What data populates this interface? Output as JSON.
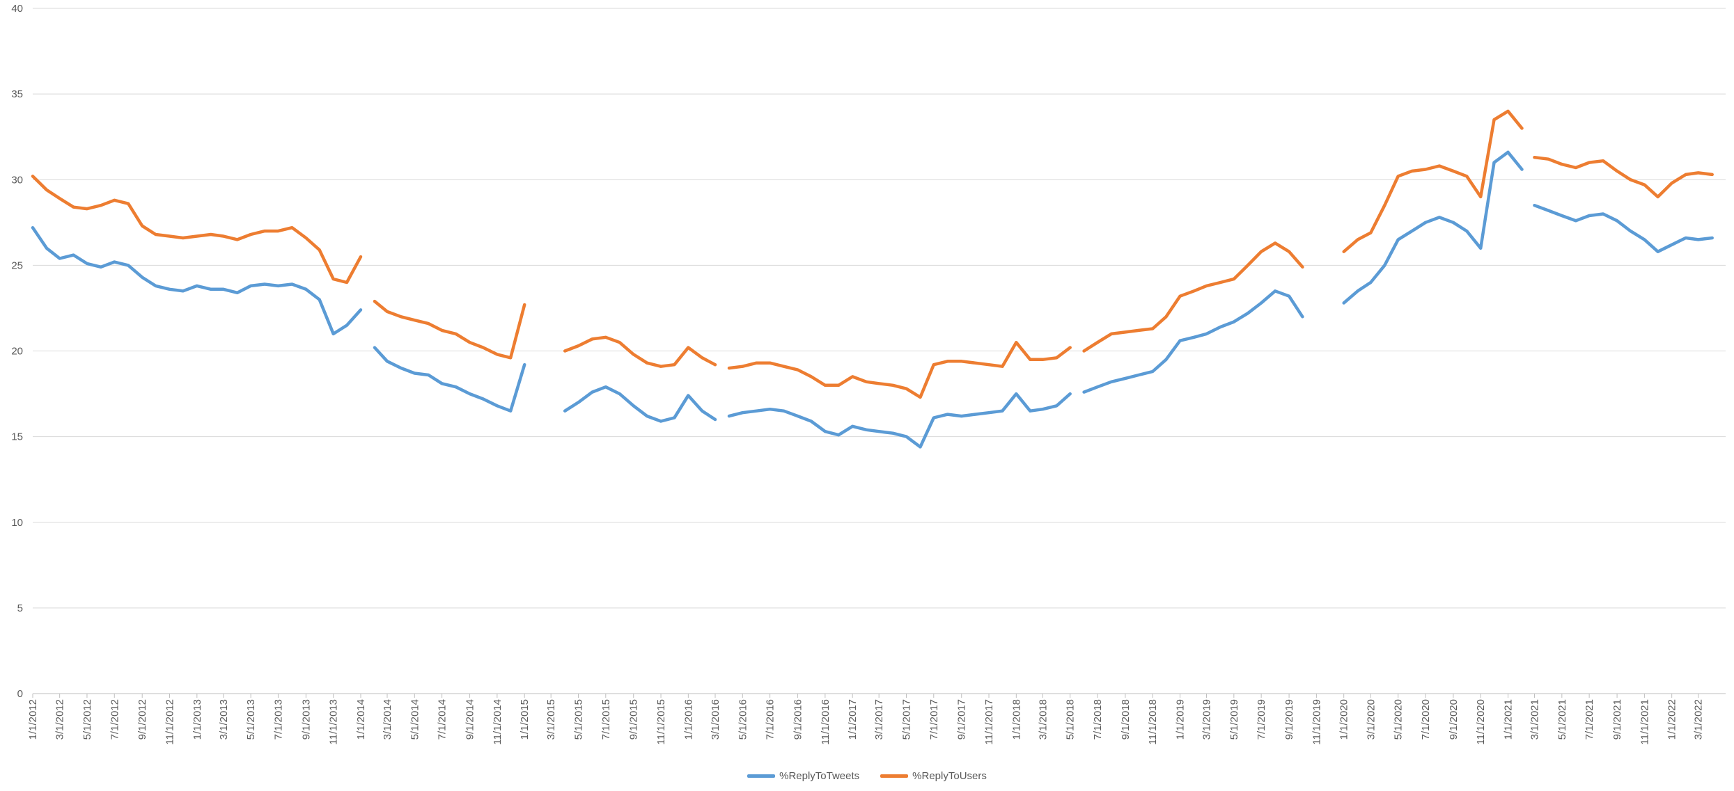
{
  "chart_data": {
    "type": "line",
    "title": "",
    "xlabel": "",
    "ylabel": "",
    "ylim": [
      0,
      40
    ],
    "yticks": [
      0,
      5,
      10,
      15,
      20,
      25,
      30,
      35,
      40
    ],
    "xlim": [
      "1/1/2012",
      "5/1/2022"
    ],
    "x_tick_labels": [
      "1/1/2012",
      "3/1/2012",
      "5/1/2012",
      "7/1/2012",
      "9/1/2012",
      "11/1/2012",
      "1/1/2013",
      "3/1/2013",
      "5/1/2013",
      "7/1/2013",
      "9/1/2013",
      "11/1/2013",
      "1/1/2014",
      "3/1/2014",
      "5/1/2014",
      "7/1/2014",
      "9/1/2014",
      "11/1/2014",
      "1/1/2015",
      "3/1/2015",
      "5/1/2015",
      "7/1/2015",
      "9/1/2015",
      "11/1/2015",
      "1/1/2016",
      "3/1/2016",
      "5/1/2016",
      "7/1/2016",
      "9/1/2016",
      "11/1/2016",
      "1/1/2017",
      "3/1/2017",
      "5/1/2017",
      "7/1/2017",
      "9/1/2017",
      "11/1/2017",
      "1/1/2018",
      "3/1/2018",
      "5/1/2018",
      "7/1/2018",
      "9/1/2018",
      "11/1/2018",
      "1/1/2019",
      "3/1/2019",
      "5/1/2019",
      "7/1/2019",
      "9/1/2019",
      "11/1/2019",
      "1/1/2020",
      "3/1/2020",
      "5/1/2020",
      "7/1/2020",
      "9/1/2020",
      "11/1/2020",
      "1/1/2021",
      "3/1/2021",
      "5/1/2021",
      "7/1/2021",
      "9/1/2021",
      "11/1/2021",
      "1/1/2022",
      "3/1/2022"
    ],
    "grid": true,
    "legend_position": "bottom",
    "series": [
      {
        "name": "%ReplyToTweets",
        "color": "#5B9BD5",
        "segments": [
          [
            [
              "1/1/2012",
              27.2
            ],
            [
              "2/1/2012",
              26.0
            ],
            [
              "3/1/2012",
              25.4
            ],
            [
              "4/1/2012",
              25.6
            ],
            [
              "5/1/2012",
              25.1
            ],
            [
              "6/1/2012",
              24.9
            ],
            [
              "7/1/2012",
              25.2
            ],
            [
              "8/1/2012",
              25.0
            ],
            [
              "9/1/2012",
              24.3
            ],
            [
              "10/1/2012",
              23.8
            ],
            [
              "11/1/2012",
              23.6
            ],
            [
              "12/1/2012",
              23.5
            ],
            [
              "1/1/2013",
              23.8
            ],
            [
              "2/1/2013",
              23.6
            ],
            [
              "3/1/2013",
              23.6
            ],
            [
              "4/1/2013",
              23.4
            ],
            [
              "5/1/2013",
              23.8
            ],
            [
              "6/1/2013",
              23.9
            ],
            [
              "7/1/2013",
              23.8
            ],
            [
              "8/1/2013",
              23.9
            ],
            [
              "9/1/2013",
              23.6
            ],
            [
              "10/1/2013",
              23.0
            ],
            [
              "11/1/2013",
              21.0
            ],
            [
              "12/1/2013",
              21.5
            ],
            [
              "1/1/2014",
              22.4
            ]
          ],
          [
            [
              "2/1/2014",
              20.2
            ],
            [
              "3/1/2014",
              19.4
            ],
            [
              "4/1/2014",
              19.0
            ],
            [
              "5/1/2014",
              18.7
            ],
            [
              "6/1/2014",
              18.6
            ],
            [
              "7/1/2014",
              18.1
            ],
            [
              "8/1/2014",
              17.9
            ],
            [
              "9/1/2014",
              17.5
            ],
            [
              "10/1/2014",
              17.2
            ],
            [
              "11/1/2014",
              16.8
            ],
            [
              "12/1/2014",
              16.5
            ],
            [
              "1/1/2015",
              19.2
            ]
          ],
          [
            [
              "4/1/2015",
              16.5
            ],
            [
              "5/1/2015",
              17.0
            ],
            [
              "6/1/2015",
              17.6
            ],
            [
              "7/1/2015",
              17.9
            ],
            [
              "8/1/2015",
              17.5
            ],
            [
              "9/1/2015",
              16.8
            ],
            [
              "10/1/2015",
              16.2
            ],
            [
              "11/1/2015",
              15.9
            ],
            [
              "12/1/2015",
              16.1
            ],
            [
              "1/1/2016",
              17.4
            ],
            [
              "2/1/2016",
              16.5
            ],
            [
              "3/1/2016",
              16.0
            ]
          ],
          [
            [
              "4/1/2016",
              16.2
            ],
            [
              "5/1/2016",
              16.4
            ],
            [
              "6/1/2016",
              16.5
            ],
            [
              "7/1/2016",
              16.6
            ],
            [
              "8/1/2016",
              16.5
            ],
            [
              "9/1/2016",
              16.2
            ],
            [
              "10/1/2016",
              15.9
            ],
            [
              "11/1/2016",
              15.3
            ],
            [
              "12/1/2016",
              15.1
            ],
            [
              "1/1/2017",
              15.6
            ],
            [
              "2/1/2017",
              15.4
            ],
            [
              "3/1/2017",
              15.3
            ],
            [
              "4/1/2017",
              15.2
            ],
            [
              "5/1/2017",
              15.0
            ],
            [
              "6/1/2017",
              14.4
            ],
            [
              "7/1/2017",
              16.1
            ],
            [
              "8/1/2017",
              16.3
            ],
            [
              "9/1/2017",
              16.2
            ],
            [
              "10/1/2017",
              16.3
            ],
            [
              "11/1/2017",
              16.4
            ],
            [
              "12/1/2017",
              16.5
            ],
            [
              "1/1/2018",
              17.5
            ],
            [
              "2/1/2018",
              16.5
            ],
            [
              "3/1/2018",
              16.6
            ],
            [
              "4/1/2018",
              16.8
            ],
            [
              "5/1/2018",
              17.5
            ]
          ],
          [
            [
              "6/1/2018",
              17.6
            ],
            [
              "7/1/2018",
              17.9
            ],
            [
              "8/1/2018",
              18.2
            ],
            [
              "9/1/2018",
              18.4
            ],
            [
              "10/1/2018",
              18.6
            ],
            [
              "11/1/2018",
              18.8
            ],
            [
              "12/1/2018",
              19.5
            ],
            [
              "1/1/2019",
              20.6
            ],
            [
              "2/1/2019",
              20.8
            ],
            [
              "3/1/2019",
              21.0
            ],
            [
              "4/1/2019",
              21.4
            ],
            [
              "5/1/2019",
              21.7
            ],
            [
              "6/1/2019",
              22.2
            ],
            [
              "7/1/2019",
              22.8
            ],
            [
              "8/1/2019",
              23.5
            ],
            [
              "9/1/2019",
              23.2
            ],
            [
              "10/1/2019",
              22.0
            ]
          ],
          [
            [
              "1/1/2020",
              22.8
            ],
            [
              "2/1/2020",
              23.5
            ],
            [
              "3/1/2020",
              24.0
            ],
            [
              "4/1/2020",
              25.0
            ],
            [
              "5/1/2020",
              26.5
            ],
            [
              "6/1/2020",
              27.0
            ],
            [
              "7/1/2020",
              27.5
            ],
            [
              "8/1/2020",
              27.8
            ],
            [
              "9/1/2020",
              27.5
            ],
            [
              "10/1/2020",
              27.0
            ],
            [
              "11/1/2020",
              26.0
            ],
            [
              "12/1/2020",
              31.0
            ],
            [
              "1/1/2021",
              31.6
            ],
            [
              "2/1/2021",
              30.6
            ]
          ],
          [
            [
              "3/1/2021",
              28.5
            ],
            [
              "4/1/2021",
              28.2
            ],
            [
              "5/1/2021",
              27.9
            ],
            [
              "6/1/2021",
              27.6
            ],
            [
              "7/1/2021",
              27.9
            ],
            [
              "8/1/2021",
              28.0
            ],
            [
              "9/1/2021",
              27.6
            ],
            [
              "10/1/2021",
              27.0
            ],
            [
              "11/1/2021",
              26.5
            ],
            [
              "12/1/2021",
              25.8
            ],
            [
              "1/1/2022",
              26.2
            ],
            [
              "2/1/2022",
              26.6
            ],
            [
              "3/1/2022",
              26.5
            ],
            [
              "4/1/2022",
              26.6
            ]
          ]
        ]
      },
      {
        "name": "%ReplyToUsers",
        "color": "#ED7D31",
        "segments": [
          [
            [
              "1/1/2012",
              30.2
            ],
            [
              "2/1/2012",
              29.4
            ],
            [
              "3/1/2012",
              28.9
            ],
            [
              "4/1/2012",
              28.4
            ],
            [
              "5/1/2012",
              28.3
            ],
            [
              "6/1/2012",
              28.5
            ],
            [
              "7/1/2012",
              28.8
            ],
            [
              "8/1/2012",
              28.6
            ],
            [
              "9/1/2012",
              27.3
            ],
            [
              "10/1/2012",
              26.8
            ],
            [
              "11/1/2012",
              26.7
            ],
            [
              "12/1/2012",
              26.6
            ],
            [
              "1/1/2013",
              26.7
            ],
            [
              "2/1/2013",
              26.8
            ],
            [
              "3/1/2013",
              26.7
            ],
            [
              "4/1/2013",
              26.5
            ],
            [
              "5/1/2013",
              26.8
            ],
            [
              "6/1/2013",
              27.0
            ],
            [
              "7/1/2013",
              27.0
            ],
            [
              "8/1/2013",
              27.2
            ],
            [
              "9/1/2013",
              26.6
            ],
            [
              "10/1/2013",
              25.9
            ],
            [
              "11/1/2013",
              24.2
            ],
            [
              "12/1/2013",
              24.0
            ],
            [
              "1/1/2014",
              25.5
            ]
          ],
          [
            [
              "2/1/2014",
              22.9
            ],
            [
              "3/1/2014",
              22.3
            ],
            [
              "4/1/2014",
              22.0
            ],
            [
              "5/1/2014",
              21.8
            ],
            [
              "6/1/2014",
              21.6
            ],
            [
              "7/1/2014",
              21.2
            ],
            [
              "8/1/2014",
              21.0
            ],
            [
              "9/1/2014",
              20.5
            ],
            [
              "10/1/2014",
              20.2
            ],
            [
              "11/1/2014",
              19.8
            ],
            [
              "12/1/2014",
              19.6
            ],
            [
              "1/1/2015",
              22.7
            ]
          ],
          [
            [
              "4/1/2015",
              20.0
            ],
            [
              "5/1/2015",
              20.3
            ],
            [
              "6/1/2015",
              20.7
            ],
            [
              "7/1/2015",
              20.8
            ],
            [
              "8/1/2015",
              20.5
            ],
            [
              "9/1/2015",
              19.8
            ],
            [
              "10/1/2015",
              19.3
            ],
            [
              "11/1/2015",
              19.1
            ],
            [
              "12/1/2015",
              19.2
            ],
            [
              "1/1/2016",
              20.2
            ],
            [
              "2/1/2016",
              19.6
            ],
            [
              "3/1/2016",
              19.2
            ]
          ],
          [
            [
              "4/1/2016",
              19.0
            ],
            [
              "5/1/2016",
              19.1
            ],
            [
              "6/1/2016",
              19.3
            ],
            [
              "7/1/2016",
              19.3
            ],
            [
              "8/1/2016",
              19.1
            ],
            [
              "9/1/2016",
              18.9
            ],
            [
              "10/1/2016",
              18.5
            ],
            [
              "11/1/2016",
              18.0
            ],
            [
              "12/1/2016",
              18.0
            ],
            [
              "1/1/2017",
              18.5
            ],
            [
              "2/1/2017",
              18.2
            ],
            [
              "3/1/2017",
              18.1
            ],
            [
              "4/1/2017",
              18.0
            ],
            [
              "5/1/2017",
              17.8
            ],
            [
              "6/1/2017",
              17.3
            ],
            [
              "7/1/2017",
              19.2
            ],
            [
              "8/1/2017",
              19.4
            ],
            [
              "9/1/2017",
              19.4
            ],
            [
              "10/1/2017",
              19.3
            ],
            [
              "11/1/2017",
              19.2
            ],
            [
              "12/1/2017",
              19.1
            ],
            [
              "1/1/2018",
              20.5
            ],
            [
              "2/1/2018",
              19.5
            ],
            [
              "3/1/2018",
              19.5
            ],
            [
              "4/1/2018",
              19.6
            ],
            [
              "5/1/2018",
              20.2
            ]
          ],
          [
            [
              "6/1/2018",
              20.0
            ],
            [
              "7/1/2018",
              20.5
            ],
            [
              "8/1/2018",
              21.0
            ],
            [
              "9/1/2018",
              21.1
            ],
            [
              "10/1/2018",
              21.2
            ],
            [
              "11/1/2018",
              21.3
            ],
            [
              "12/1/2018",
              22.0
            ],
            [
              "1/1/2019",
              23.2
            ],
            [
              "2/1/2019",
              23.5
            ],
            [
              "3/1/2019",
              23.8
            ],
            [
              "4/1/2019",
              24.0
            ],
            [
              "5/1/2019",
              24.2
            ],
            [
              "6/1/2019",
              25.0
            ],
            [
              "7/1/2019",
              25.8
            ],
            [
              "8/1/2019",
              26.3
            ],
            [
              "9/1/2019",
              25.8
            ],
            [
              "10/1/2019",
              24.9
            ]
          ],
          [
            [
              "1/1/2020",
              25.8
            ],
            [
              "2/1/2020",
              26.5
            ],
            [
              "3/1/2020",
              26.9
            ],
            [
              "4/1/2020",
              28.5
            ],
            [
              "5/1/2020",
              30.2
            ],
            [
              "6/1/2020",
              30.5
            ],
            [
              "7/1/2020",
              30.6
            ],
            [
              "8/1/2020",
              30.8
            ],
            [
              "9/1/2020",
              30.5
            ],
            [
              "10/1/2020",
              30.2
            ],
            [
              "11/1/2020",
              29.0
            ],
            [
              "12/1/2020",
              33.5
            ],
            [
              "1/1/2021",
              34.0
            ],
            [
              "2/1/2021",
              33.0
            ]
          ],
          [
            [
              "3/1/2021",
              31.3
            ],
            [
              "4/1/2021",
              31.2
            ],
            [
              "5/1/2021",
              30.9
            ],
            [
              "6/1/2021",
              30.7
            ],
            [
              "7/1/2021",
              31.0
            ],
            [
              "8/1/2021",
              31.1
            ],
            [
              "9/1/2021",
              30.5
            ],
            [
              "10/1/2021",
              30.0
            ],
            [
              "11/1/2021",
              29.7
            ],
            [
              "12/1/2021",
              29.0
            ],
            [
              "1/1/2022",
              29.8
            ],
            [
              "2/1/2022",
              30.3
            ],
            [
              "3/1/2022",
              30.4
            ],
            [
              "4/1/2022",
              30.3
            ]
          ]
        ]
      }
    ]
  }
}
